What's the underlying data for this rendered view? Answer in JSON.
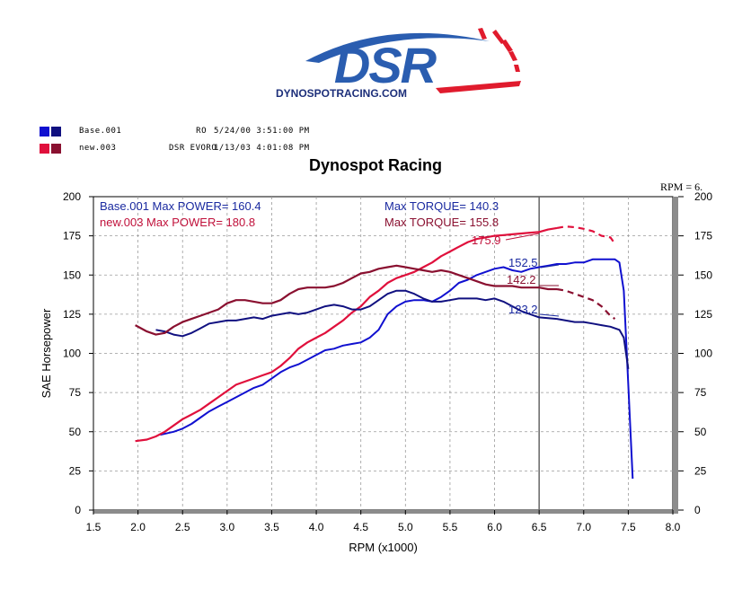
{
  "logo": {
    "main_text": "DSR",
    "sub_text": "DYNOSPOTRACING.COM",
    "colors": {
      "blue": "#2a5db0",
      "red": "#e01b2d",
      "navy": "#1d2f7a"
    }
  },
  "runs": [
    {
      "name": "Base.001",
      "config": "RO",
      "date": "5/24/00 3:51:00 PM",
      "color": "#1010d0",
      "color2": "#101080"
    },
    {
      "name": "new.003",
      "config": "DSR EVORO",
      "date": "1/13/03 4:01:08 PM",
      "color": "#e0103c",
      "color2": "#8a1030"
    }
  ],
  "chart_title": "Dynospot Racing",
  "chart_data": {
    "type": "line",
    "title": "Dynospot Racing",
    "xlabel": "RPM (x1000)",
    "ylabel": "SAE Horsepower",
    "xlim": [
      1.5,
      8.0
    ],
    "ylim": [
      0,
      200
    ],
    "x_ticks": [
      "1.5",
      "2.0",
      "2.5",
      "3.0",
      "3.5",
      "4.0",
      "4.5",
      "5.0",
      "5.5",
      "6.0",
      "6.5",
      "7.0",
      "7.5",
      "8.0"
    ],
    "y_ticks": [
      "0",
      "25",
      "50",
      "75",
      "100",
      "125",
      "150",
      "175",
      "200"
    ],
    "grid": true,
    "cursor": {
      "label": "RPM = 6.",
      "x": 6.5
    },
    "stats": [
      {
        "text": "Base.001  Max POWER= 160.4",
        "color": "#1a2aa0"
      },
      {
        "text": "new.003  Max POWER= 180.8",
        "color": "#c0103a"
      },
      {
        "text": "Max TORQUE= 140.3",
        "color": "#1a2aa0"
      },
      {
        "text": "Max TORQUE= 155.8",
        "color": "#8a1030"
      }
    ],
    "annotations": [
      {
        "text": "175.9",
        "x": 5.7,
        "y": 175.9,
        "color": "#c0103a"
      },
      {
        "text": "152.5",
        "x": 6.2,
        "y": 152.5,
        "color": "#1a2aa0"
      },
      {
        "text": "142.2",
        "x": 6.2,
        "y": 142.2,
        "color": "#8a1030"
      },
      {
        "text": "123.2",
        "x": 6.2,
        "y": 123.2,
        "color": "#1a2aa0"
      }
    ],
    "series": [
      {
        "name": "Base.001 Power",
        "color": "#1010d0",
        "x": [
          2.25,
          2.4,
          2.5,
          2.6,
          2.7,
          2.8,
          2.9,
          3.0,
          3.1,
          3.2,
          3.3,
          3.4,
          3.5,
          3.6,
          3.7,
          3.8,
          3.9,
          4.0,
          4.1,
          4.2,
          4.3,
          4.4,
          4.5,
          4.6,
          4.7,
          4.8,
          4.9,
          5.0,
          5.1,
          5.2,
          5.3,
          5.4,
          5.5,
          5.6,
          5.7,
          5.8,
          5.9,
          6.0,
          6.1,
          6.2,
          6.3,
          6.4,
          6.5,
          6.6,
          6.7,
          6.8,
          6.9,
          7.0,
          7.1,
          7.2,
          7.3,
          7.35,
          7.4,
          7.45,
          7.5,
          7.55
        ],
        "y": [
          48,
          50,
          52,
          55,
          59,
          63,
          66,
          69,
          72,
          75,
          78,
          80,
          84,
          88,
          91,
          93,
          96,
          99,
          102,
          103,
          105,
          106,
          107,
          110,
          115,
          125,
          130,
          133,
          134,
          134,
          133,
          136,
          140,
          145,
          147,
          150,
          152,
          154,
          155,
          153,
          152,
          154,
          155,
          156,
          157,
          157,
          158,
          158,
          160,
          160,
          160,
          160,
          158,
          140,
          80,
          20
        ]
      },
      {
        "name": "new.003 Power",
        "color": "#e0103c",
        "x": [
          1.97,
          2.1,
          2.2,
          2.3,
          2.4,
          2.5,
          2.6,
          2.7,
          2.8,
          2.9,
          3.0,
          3.1,
          3.2,
          3.3,
          3.4,
          3.5,
          3.6,
          3.7,
          3.8,
          3.9,
          4.0,
          4.1,
          4.2,
          4.3,
          4.4,
          4.5,
          4.6,
          4.7,
          4.8,
          4.9,
          5.0,
          5.1,
          5.2,
          5.3,
          5.4,
          5.5,
          5.6,
          5.7,
          5.8,
          5.9,
          6.0,
          6.1,
          6.2,
          6.3,
          6.4,
          6.5,
          6.6,
          6.7,
          6.8,
          6.9,
          7.0,
          7.1,
          7.2,
          7.3,
          7.35
        ],
        "y": [
          44,
          45,
          47,
          50,
          54,
          58,
          61,
          64,
          68,
          72,
          76,
          80,
          82,
          84,
          86,
          88,
          92,
          97,
          103,
          107,
          110,
          113,
          117,
          121,
          126,
          130,
          136,
          140,
          145,
          148,
          150,
          152,
          155,
          158,
          162,
          165,
          168,
          171,
          173,
          174,
          175,
          175.5,
          176,
          176.5,
          177,
          177.5,
          179,
          180,
          181,
          180.5,
          179.5,
          178,
          175,
          174,
          170
        ]
      },
      {
        "name": "Base.001 Torque",
        "color": "#101080",
        "x": [
          2.2,
          2.3,
          2.4,
          2.5,
          2.6,
          2.7,
          2.8,
          2.9,
          3.0,
          3.1,
          3.2,
          3.3,
          3.4,
          3.5,
          3.6,
          3.7,
          3.8,
          3.9,
          4.0,
          4.1,
          4.2,
          4.3,
          4.4,
          4.5,
          4.6,
          4.7,
          4.8,
          4.9,
          5.0,
          5.1,
          5.2,
          5.3,
          5.4,
          5.5,
          5.6,
          5.7,
          5.8,
          5.9,
          6.0,
          6.1,
          6.2,
          6.3,
          6.4,
          6.5,
          6.6,
          6.7,
          6.8,
          6.9,
          7.0,
          7.1,
          7.2,
          7.3,
          7.4,
          7.45,
          7.5
        ],
        "y": [
          115,
          114,
          112,
          111,
          113,
          116,
          119,
          120,
          121,
          121,
          122,
          123,
          122,
          124,
          125,
          126,
          125,
          126,
          128,
          130,
          131,
          130,
          128,
          128,
          130,
          134,
          138,
          140,
          140,
          138,
          135,
          133,
          133,
          134,
          135,
          135,
          135,
          134,
          135,
          133,
          130,
          127,
          125,
          123,
          122.5,
          122,
          121,
          120,
          120,
          119,
          118,
          117,
          115,
          110,
          90
        ]
      },
      {
        "name": "new.003 Torque",
        "color": "#8a1030",
        "x": [
          1.97,
          2.1,
          2.2,
          2.3,
          2.4,
          2.5,
          2.6,
          2.7,
          2.8,
          2.9,
          3.0,
          3.1,
          3.2,
          3.3,
          3.4,
          3.5,
          3.6,
          3.7,
          3.8,
          3.9,
          4.0,
          4.1,
          4.2,
          4.3,
          4.4,
          4.5,
          4.6,
          4.7,
          4.8,
          4.9,
          5.0,
          5.1,
          5.2,
          5.3,
          5.4,
          5.5,
          5.6,
          5.7,
          5.8,
          5.9,
          6.0,
          6.1,
          6.2,
          6.3,
          6.4,
          6.5,
          6.6,
          6.7,
          6.8,
          6.9,
          7.0,
          7.1,
          7.2,
          7.3,
          7.35
        ],
        "y": [
          118,
          114,
          112,
          113,
          117,
          120,
          122,
          124,
          126,
          128,
          132,
          134,
          134,
          133,
          132,
          132,
          134,
          138,
          141,
          142,
          142,
          142,
          143,
          145,
          148,
          151,
          152,
          154,
          155,
          156,
          155,
          154,
          153,
          152,
          153,
          152,
          150,
          148,
          146,
          144,
          143,
          143,
          143,
          142,
          142,
          142,
          141,
          141,
          140,
          138,
          136,
          134,
          130,
          124,
          122
        ]
      }
    ]
  }
}
